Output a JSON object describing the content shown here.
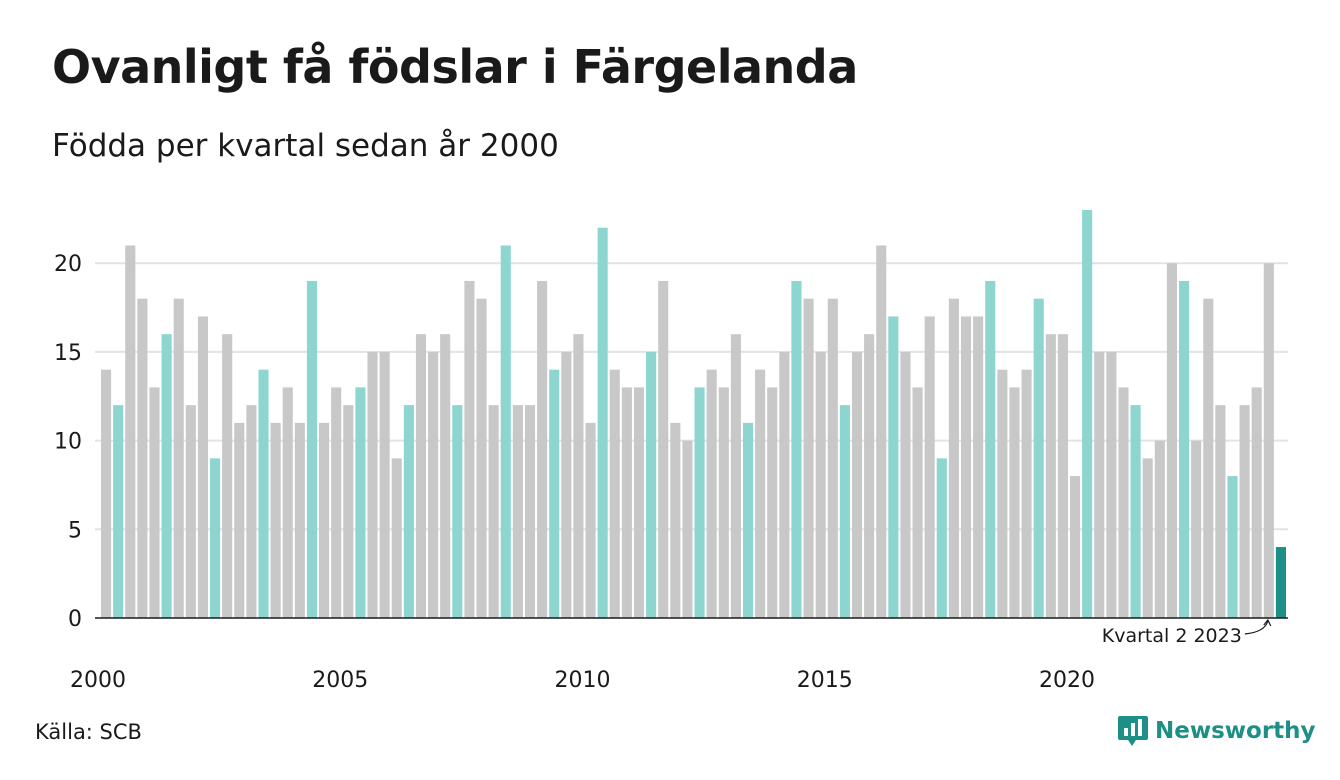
{
  "chart_data": {
    "type": "bar",
    "title": "Ovanligt få födslar i Färgelanda",
    "subtitle": "Födda per kvartal sedan år 2000",
    "source": "Källa: SCB",
    "ylim": [
      0,
      23
    ],
    "yticks": [
      0,
      5,
      10,
      15,
      20
    ],
    "xticks": [
      "2000",
      "2005",
      "2010",
      "2015",
      "2020"
    ],
    "grid": true,
    "highlight_quarter": 2,
    "annotation": "Kvartal 2 2023",
    "colors": {
      "default": "#c8c8c8",
      "highlight": "#8dd6cf",
      "latest": "#1e8f86"
    },
    "values": [
      14,
      12,
      21,
      18,
      13,
      16,
      18,
      12,
      17,
      9,
      16,
      11,
      12,
      14,
      11,
      13,
      11,
      19,
      11,
      13,
      12,
      13,
      15,
      15,
      9,
      12,
      16,
      15,
      16,
      12,
      19,
      18,
      12,
      21,
      12,
      12,
      19,
      14,
      15,
      16,
      11,
      22,
      14,
      13,
      13,
      15,
      19,
      11,
      10,
      13,
      14,
      13,
      16,
      11,
      14,
      13,
      15,
      19,
      18,
      15,
      18,
      12,
      15,
      16,
      21,
      17,
      15,
      13,
      17,
      9,
      18,
      17,
      17,
      19,
      14,
      13,
      14,
      18,
      16,
      16,
      8,
      23,
      15,
      15,
      13,
      12,
      9,
      10,
      20,
      19,
      10,
      18,
      12,
      8,
      12,
      13,
      20,
      4
    ]
  },
  "brand": {
    "name": "Newsworthy"
  }
}
